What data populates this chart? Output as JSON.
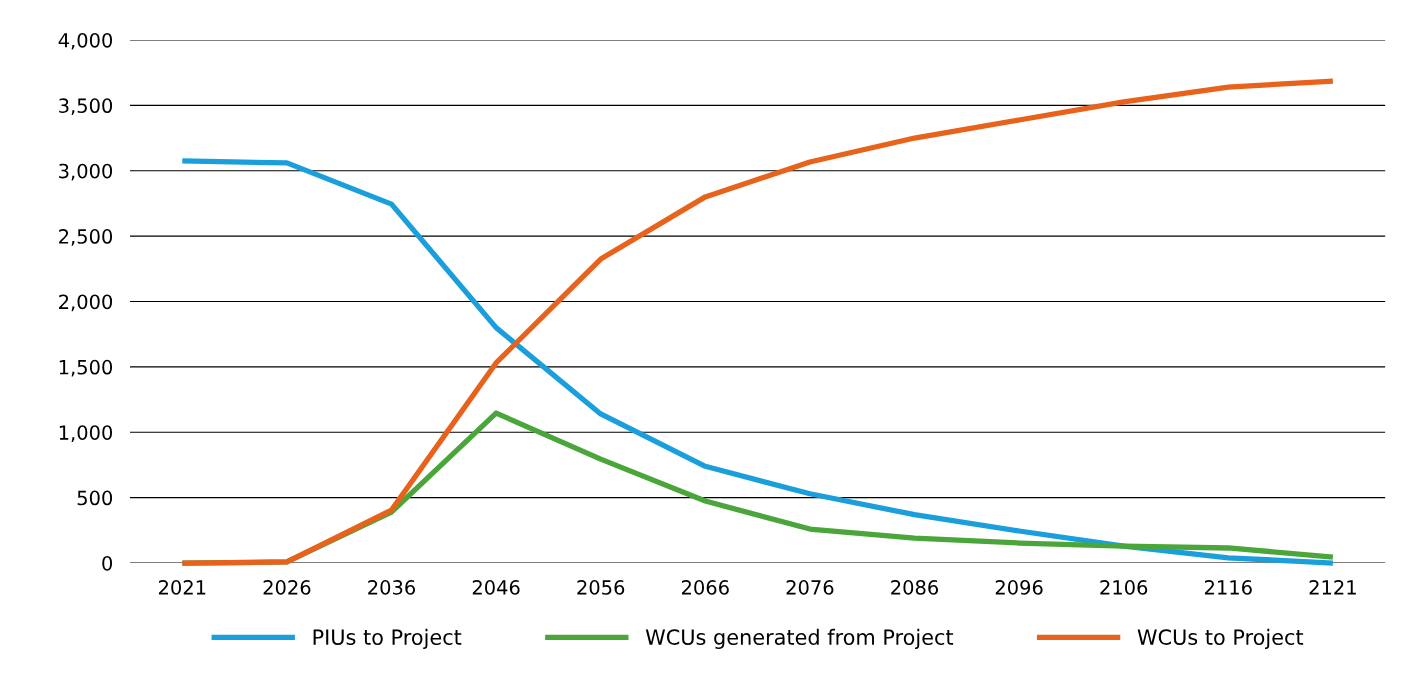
{
  "chart_data": {
    "type": "line",
    "categories": [
      "2021",
      "2026",
      "2036",
      "2046",
      "2056",
      "2066",
      "2076",
      "2086",
      "2096",
      "2106",
      "2116",
      "2121"
    ],
    "series": [
      {
        "name": "PIUs to Project",
        "color": "#1a9fdc",
        "values": [
          3075,
          3060,
          2745,
          1800,
          1140,
          740,
          530,
          370,
          245,
          130,
          40,
          0
        ]
      },
      {
        "name": "WCUs generated from Project",
        "color": "#4aa63a",
        "values": [
          0,
          8,
          390,
          1147,
          795,
          474,
          260,
          190,
          153,
          130,
          115,
          46
        ]
      },
      {
        "name": "WCUs to Project",
        "color": "#e8621c",
        "values": [
          0,
          8,
          405,
          1530,
          2325,
          2800,
          3067,
          3250,
          3388,
          3526,
          3640,
          3686
        ]
      }
    ],
    "ylim": [
      0,
      4000
    ],
    "yticks": [
      0,
      {
        "value": 500,
        "label": "500"
      },
      {
        "value": 1000,
        "label": "1,000"
      },
      {
        "value": 1500,
        "label": "1,500"
      },
      {
        "value": 2000,
        "label": "2,000"
      },
      {
        "value": 2500,
        "label": "2,500"
      },
      {
        "value": 3000,
        "label": "3,000"
      },
      {
        "value": 3500,
        "label": "3,500"
      },
      {
        "value": 4000,
        "label": "4,000"
      }
    ],
    "grid": "y",
    "legend": "bottom",
    "marker": "none",
    "line_style": "solid"
  }
}
